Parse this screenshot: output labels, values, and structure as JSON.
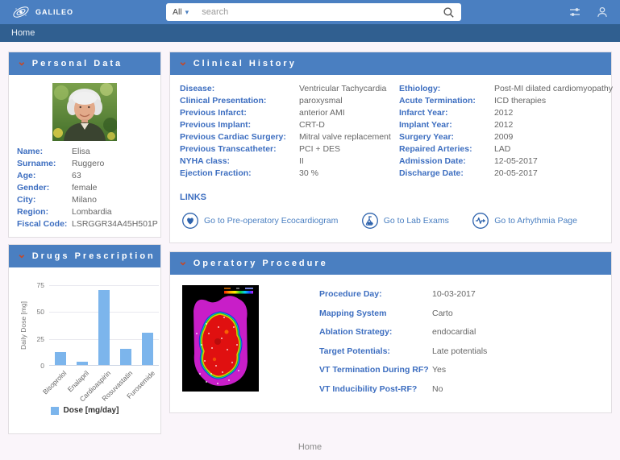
{
  "app": {
    "name": "GALILEO"
  },
  "header": {
    "search": {
      "filter_label": "All",
      "placeholder": "search"
    }
  },
  "nav": {
    "home": "Home"
  },
  "icons": {
    "logo": "galaxy-logo-icon",
    "search": "magnifier-icon",
    "topbar": [
      "tune-icon",
      "user-icon"
    ],
    "panel_collapse": "chevron-down-icon",
    "links": [
      "ecocardiogram-icon",
      "lab-flask-icon",
      "arrhythmia-icon"
    ]
  },
  "panels": {
    "personal": {
      "title": "Personal Data",
      "fields": [
        {
          "label": "Name:",
          "value": "Elisa"
        },
        {
          "label": "Surname:",
          "value": "Ruggero"
        },
        {
          "label": "Age:",
          "value": "63"
        },
        {
          "label": "Gender:",
          "value": "female"
        },
        {
          "label": "City:",
          "value": "Milano"
        },
        {
          "label": "Region:",
          "value": "Lombardia"
        },
        {
          "label": "Fiscal Code:",
          "value": "LSRGGR34A45H501P"
        }
      ]
    },
    "drugs": {
      "title": "Drugs Prescription"
    },
    "clinical": {
      "title": "Clinical History",
      "left_fields": [
        {
          "label": "Disease:",
          "value": "Ventricular Tachycardia"
        },
        {
          "label": "Clinical Presentation:",
          "value": "paroxysmal"
        },
        {
          "label": "Previous Infarct:",
          "value": "anterior AMI"
        },
        {
          "label": "Previous Implant:",
          "value": "CRT-D"
        },
        {
          "label": "Previous Cardiac Surgery:",
          "value": "Mitral valve replacement"
        },
        {
          "label": "Previous Transcatheter:",
          "value": "PCI + DES"
        },
        {
          "label": "NYHA class:",
          "value": "II"
        },
        {
          "label": "Ejection Fraction:",
          "value": "30 %"
        }
      ],
      "right_fields": [
        {
          "label": "Ethiology:",
          "value": "Post-MI dilated cardiomyopathy"
        },
        {
          "label": "Acute Termination:",
          "value": "ICD therapies"
        },
        {
          "label": "Infarct Year:",
          "value": "2012"
        },
        {
          "label": "Implant Year:",
          "value": "2012"
        },
        {
          "label": "Surgery Year:",
          "value": "2009"
        },
        {
          "label": "Repaired Arteries:",
          "value": "LAD"
        },
        {
          "label": "Admission Date:",
          "value": "12-05-2017"
        },
        {
          "label": "Discharge Date:",
          "value": "20-05-2017"
        }
      ],
      "links_heading": "LINKS",
      "links": [
        {
          "icon": "ecocardiogram-icon",
          "label": "Go to Pre-operatory Ecocardiogram"
        },
        {
          "icon": "lab-flask-icon",
          "label": "Go to Lab Exams"
        },
        {
          "icon": "arrhythmia-icon",
          "label": "Go to Arhythmia Page"
        }
      ]
    },
    "procedure": {
      "title": "Operatory Procedure",
      "fields": [
        {
          "label": "Procedure Day:",
          "value": "10-03-2017"
        },
        {
          "label": "Mapping System",
          "value": "Carto"
        },
        {
          "label": "Ablation Strategy:",
          "value": "endocardial"
        },
        {
          "label": "Target Potentials:",
          "value": "Late potentials"
        },
        {
          "label": "VT Termination During RF?",
          "value": "Yes"
        },
        {
          "label": "VT Inducibility Post-RF?",
          "value": "No"
        }
      ]
    }
  },
  "footer": {
    "home": "Home"
  },
  "chart_data": {
    "type": "bar",
    "categories": [
      "Bisoprolol",
      "Enalapril",
      "Cardioaspirin",
      "Rosuvastatin",
      "Furosemide"
    ],
    "values": [
      12,
      3,
      70,
      15,
      30
    ],
    "title": "",
    "xlabel": "",
    "ylabel": "Daily Dose [mg]",
    "ylim": [
      0,
      75
    ],
    "yticks": [
      0,
      25,
      50,
      75
    ],
    "legend": "Dose [mg/day]",
    "bar_color": "#7cb5ec",
    "grid": true,
    "legend_position": "bottom"
  },
  "colors": {
    "header_blue": "#4a7fc1",
    "nav_blue": "#305f90",
    "panel_header_blue": "#4a7fc1",
    "label_blue": "#3d6ec0",
    "link_blue": "#4a7fc1",
    "bar_blue": "#7cb5ec",
    "chevron_orange": "#c14b2e",
    "page_bg": "#faf5fa"
  }
}
